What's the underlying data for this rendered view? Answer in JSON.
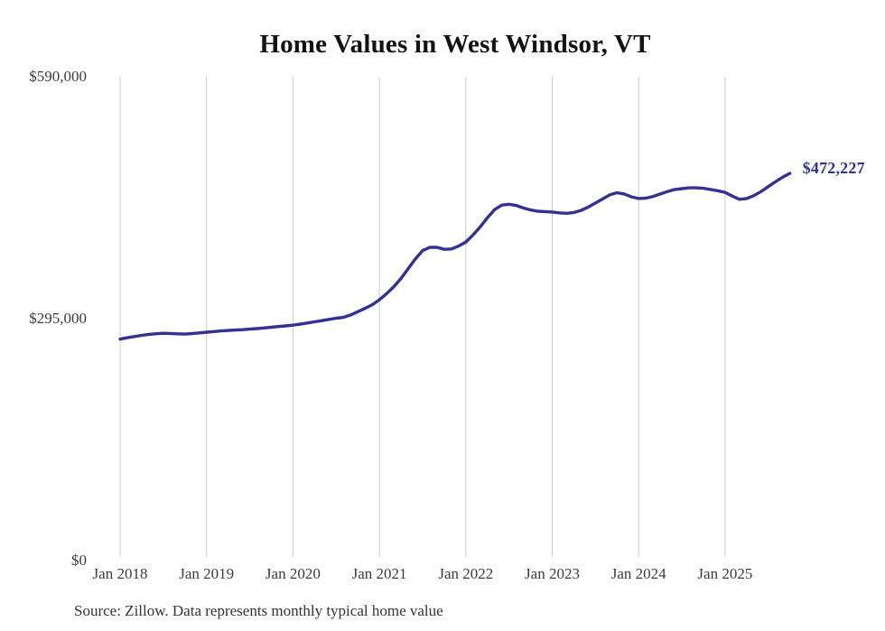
{
  "title": "Home Values in West Windsor, VT",
  "source_note": "Source: Zillow. Data represents monthly typical home value",
  "colors": {
    "line": "#333192",
    "annotation": "#333192",
    "grid": "#cccccc",
    "axis_text": "#3c3c3c",
    "title_text": "#131313",
    "background": "#ffffff"
  },
  "chart_data": {
    "type": "line",
    "title": "Home Values in West Windsor, VT",
    "xlabel": "",
    "ylabel": "",
    "legend": "none",
    "grid": "vertical-only",
    "ylim": [
      0,
      590000
    ],
    "y_ticks": [
      {
        "label": "$590,000",
        "value": 590000
      },
      {
        "label": "$295,000",
        "value": 295000
      },
      {
        "label": "$0",
        "value": 0
      }
    ],
    "x_ticks": [
      {
        "label": "Jan 2018",
        "month": "2018-01"
      },
      {
        "label": "Jan 2019",
        "month": "2019-01"
      },
      {
        "label": "Jan 2020",
        "month": "2020-01"
      },
      {
        "label": "Jan 2021",
        "month": "2021-01"
      },
      {
        "label": "Jan 2022",
        "month": "2022-01"
      },
      {
        "label": "Jan 2023",
        "month": "2023-01"
      },
      {
        "label": "Jan 2024",
        "month": "2024-01"
      },
      {
        "label": "Jan 2025",
        "month": "2025-01"
      }
    ],
    "annotation": {
      "text": "$472,227",
      "attached_to": "last-point"
    },
    "x": [
      "2018-01",
      "2018-02",
      "2018-03",
      "2018-04",
      "2018-05",
      "2018-06",
      "2018-07",
      "2018-08",
      "2018-09",
      "2018-10",
      "2018-11",
      "2018-12",
      "2019-01",
      "2019-02",
      "2019-03",
      "2019-04",
      "2019-05",
      "2019-06",
      "2019-07",
      "2019-08",
      "2019-09",
      "2019-10",
      "2019-11",
      "2019-12",
      "2020-01",
      "2020-02",
      "2020-03",
      "2020-04",
      "2020-05",
      "2020-06",
      "2020-07",
      "2020-08",
      "2020-09",
      "2020-10",
      "2020-11",
      "2020-12",
      "2021-01",
      "2021-02",
      "2021-03",
      "2021-04",
      "2021-05",
      "2021-06",
      "2021-07",
      "2021-08",
      "2021-09",
      "2021-10",
      "2021-11",
      "2021-12",
      "2022-01",
      "2022-02",
      "2022-03",
      "2022-04",
      "2022-05",
      "2022-06",
      "2022-07",
      "2022-08",
      "2022-09",
      "2022-10",
      "2022-11",
      "2022-12",
      "2023-01",
      "2023-02",
      "2023-03",
      "2023-04",
      "2023-05",
      "2023-06",
      "2023-07",
      "2023-08",
      "2023-09",
      "2023-10",
      "2023-11",
      "2023-12",
      "2024-01",
      "2024-02",
      "2024-03",
      "2024-04",
      "2024-05",
      "2024-06",
      "2024-07",
      "2024-08",
      "2024-09",
      "2024-10",
      "2024-11",
      "2024-12",
      "2025-01",
      "2025-02",
      "2025-03",
      "2025-04",
      "2025-05",
      "2025-06",
      "2025-07",
      "2025-08",
      "2025-09",
      "2025-10"
    ],
    "values": [
      270000,
      271800,
      273200,
      274600,
      275800,
      276600,
      277200,
      277000,
      276500,
      276200,
      276800,
      277600,
      278500,
      279300,
      280000,
      280600,
      281100,
      281600,
      282200,
      282900,
      283700,
      284500,
      285400,
      286200,
      287100,
      288300,
      289700,
      291100,
      292600,
      294100,
      295500,
      296500,
      299500,
      303500,
      307500,
      312000,
      318000,
      325500,
      334000,
      344000,
      356000,
      368000,
      378000,
      382000,
      382000,
      379500,
      380000,
      383500,
      388500,
      397000,
      407000,
      418000,
      428000,
      433500,
      434500,
      433000,
      430000,
      427500,
      426000,
      425500,
      425000,
      424000,
      423500,
      424500,
      427000,
      431000,
      436000,
      441000,
      446000,
      448500,
      447000,
      443500,
      441500,
      442000,
      444000,
      447000,
      450000,
      452500,
      453500,
      454500,
      454500,
      454000,
      452500,
      451000,
      449000,
      444500,
      440500,
      441500,
      445000,
      450000,
      456000,
      462000,
      467500,
      472227
    ]
  }
}
